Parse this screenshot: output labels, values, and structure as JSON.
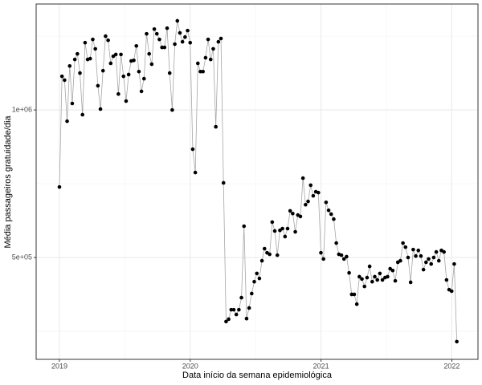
{
  "chart_data": {
    "type": "line",
    "x_label": "Data início da semana epidemiológica",
    "y_label": "Média passageiros gratuidade/dia",
    "xlim": [
      2018.822,
      2022.2
    ],
    "xticks": [
      2019,
      2020,
      2021,
      2022
    ],
    "xminor": [
      2019.5,
      2020.5,
      2021.5
    ],
    "ylim": [
      155000,
      1359000
    ],
    "yticks": [
      {
        "value": 500000,
        "label": "5e+05"
      },
      {
        "value": 1000000,
        "label": "1e+06"
      }
    ],
    "yminor": [
      250000,
      750000,
      1250000
    ],
    "grid": true,
    "line_color": "#a6a6a6",
    "point_color": "#000000",
    "x": [
      2019,
      2019.0196,
      2019.0392,
      2019.0588,
      2019.0784,
      2019.098,
      2019.1176,
      2019.1372,
      2019.1568,
      2019.1764,
      2019.196,
      2019.2156,
      2019.2352,
      2019.2548,
      2019.2744,
      2019.294,
      2019.3136,
      2019.3332,
      2019.3528,
      2019.3724,
      2019.392,
      2019.4116,
      2019.4312,
      2019.4508,
      2019.4704,
      2019.49,
      2019.5096,
      2019.5292,
      2019.5488,
      2019.5684,
      2019.588,
      2019.6076,
      2019.6272,
      2019.6468,
      2019.6664,
      2019.686,
      2019.7056,
      2019.7252,
      2019.7448,
      2019.7644,
      2019.784,
      2019.8036,
      2019.8232,
      2019.8428,
      2019.8624,
      2019.882,
      2019.9016,
      2019.9212,
      2019.9408,
      2019.9604,
      2019.98,
      2019.9996,
      2020.0192,
      2020.0388,
      2020.0584,
      2020.078,
      2020.0976,
      2020.1172,
      2020.1368,
      2020.1564,
      2020.176,
      2020.1956,
      2020.2152,
      2020.2348,
      2020.2544,
      2020.274,
      2020.2936,
      2020.3132,
      2020.3328,
      2020.3524,
      2020.372,
      2020.3916,
      2020.4112,
      2020.4308,
      2020.4504,
      2020.47,
      2020.4896,
      2020.5092,
      2020.5288,
      2020.5484,
      2020.568,
      2020.5876,
      2020.6072,
      2020.6268,
      2020.6464,
      2020.666,
      2020.6856,
      2020.7052,
      2020.7248,
      2020.7444,
      2020.764,
      2020.7836,
      2020.8032,
      2020.8228,
      2020.8424,
      2020.862,
      2020.8816,
      2020.9012,
      2020.9208,
      2020.9404,
      2020.96,
      2020.9796,
      2020.9992,
      2021.0188,
      2021.0384,
      2021.058,
      2021.0776,
      2021.0972,
      2021.1168,
      2021.1364,
      2021.156,
      2021.1756,
      2021.1952,
      2021.2148,
      2021.2344,
      2021.254,
      2021.2736,
      2021.2932,
      2021.3128,
      2021.3324,
      2021.352,
      2021.3716,
      2021.3912,
      2021.4108,
      2021.4304,
      2021.45,
      2021.4696,
      2021.4892,
      2021.5088,
      2021.5284,
      2021.548,
      2021.5676,
      2021.5872,
      2021.6068,
      2021.6264,
      2021.646,
      2021.6656,
      2021.6852,
      2021.7048,
      2021.7244,
      2021.744,
      2021.7636,
      2021.7832,
      2021.8028,
      2021.8224,
      2021.842,
      2021.8616,
      2021.8812,
      2021.9008,
      2021.9204,
      2021.94,
      2021.9596,
      2021.9792,
      2021.9988,
      2022.0184,
      2022.038
    ],
    "values": [
      739000,
      1114000,
      1101000,
      962000,
      1149000,
      1022000,
      1171000,
      1190000,
      1125000,
      984000,
      1228000,
      1171000,
      1174000,
      1239000,
      1207000,
      1082000,
      1003000,
      1133000,
      1250000,
      1236000,
      1158000,
      1182000,
      1188000,
      1054000,
      1188000,
      1114000,
      1030000,
      1120000,
      1166000,
      1168000,
      1217000,
      1130000,
      1063000,
      1106000,
      1258000,
      1190000,
      1155000,
      1274000,
      1258000,
      1239000,
      1212000,
      1212000,
      1277000,
      1125000,
      1000000,
      1223000,
      1302000,
      1261000,
      1231000,
      1247000,
      1269000,
      1228000,
      867000,
      788000,
      1158000,
      1130000,
      1130000,
      1177000,
      1239000,
      1171000,
      1207000,
      943000,
      1231000,
      1242000,
      753000,
      283000,
      291000,
      323000,
      323000,
      307000,
      323000,
      364000,
      606000,
      293000,
      329000,
      378000,
      418000,
      446000,
      429000,
      489000,
      530000,
      516000,
      511000,
      620000,
      590000,
      508000,
      592000,
      598000,
      571000,
      598000,
      658000,
      649000,
      587000,
      644000,
      639000,
      769000,
      679000,
      690000,
      745000,
      709000,
      723000,
      720000,
      516000,
      495000,
      687000,
      660000,
      647000,
      630000,
      549000,
      511000,
      508000,
      495000,
      503000,
      448000,
      375000,
      375000,
      342000,
      435000,
      427000,
      402000,
      432000,
      470000,
      418000,
      435000,
      424000,
      446000,
      424000,
      432000,
      435000,
      462000,
      456000,
      421000,
      484000,
      489000,
      549000,
      535000,
      500000,
      416000,
      527000,
      505000,
      524000,
      505000,
      459000,
      484000,
      495000,
      478000,
      500000,
      519000,
      489000,
      524000,
      519000,
      424000,
      391000,
      386000,
      478000,
      215000
    ]
  }
}
